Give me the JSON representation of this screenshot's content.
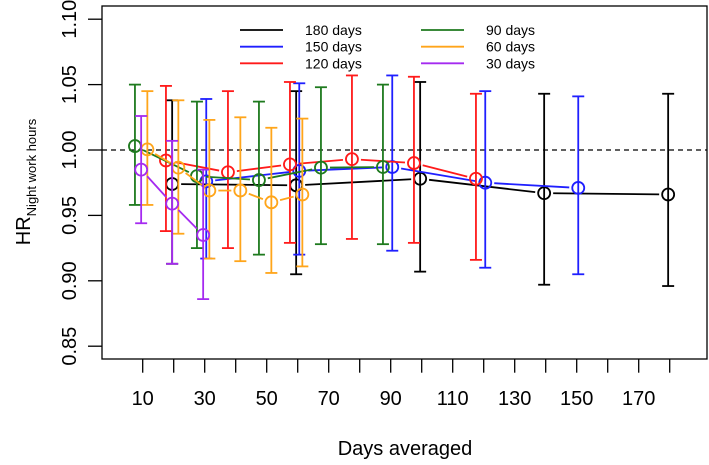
{
  "chart_data": {
    "type": "line",
    "title": "",
    "xlabel": "Days averaged",
    "ylabel_main": "HR",
    "ylabel_sub": "Night work hours",
    "xlim": [
      -2.5,
      190.4
    ],
    "ylim": [
      0.84,
      1.11
    ],
    "x_ticks": [
      10,
      20,
      30,
      40,
      50,
      60,
      70,
      80,
      90,
      100,
      110,
      120,
      130,
      140,
      150,
      160,
      170,
      180
    ],
    "x_tick_labels": [
      "10",
      "30",
      "50",
      "70",
      "90",
      "110",
      "130",
      "150",
      "170"
    ],
    "x_tick_label_values": [
      10,
      30,
      50,
      70,
      90,
      110,
      130,
      150,
      170
    ],
    "y_ticks": [
      0.85,
      0.9,
      0.95,
      1.0,
      1.05,
      1.1
    ],
    "y_tick_labels": [
      "0.85",
      "0.90",
      "0.95",
      "1.00",
      "1.05",
      "1.10"
    ],
    "reference_line": 1.0,
    "legend_position": "top-center",
    "series": [
      {
        "name": "180 days",
        "color": "#000000",
        "x": [
          19.5,
          59.5,
          99.5,
          139.5,
          179.5
        ],
        "y": [
          0.974,
          0.973,
          0.978,
          0.967,
          0.966
        ],
        "lower": [
          0.913,
          0.905,
          0.907,
          0.897,
          0.896
        ],
        "upper": [
          1.038,
          1.045,
          1.052,
          1.043,
          1.043
        ]
      },
      {
        "name": "150 days",
        "color": "#1f1fff",
        "x": [
          30.5,
          60.5,
          90.5,
          120.5,
          150.5
        ],
        "y": [
          0.976,
          0.984,
          0.987,
          0.975,
          0.971
        ],
        "lower": [
          0.917,
          0.92,
          0.923,
          0.91,
          0.905
        ],
        "upper": [
          1.039,
          1.051,
          1.057,
          1.045,
          1.041
        ]
      },
      {
        "name": "120 days",
        "color": "#ff1a1a",
        "x": [
          17.5,
          37.5,
          57.5,
          77.5,
          97.5,
          117.5
        ],
        "y": [
          0.992,
          0.983,
          0.989,
          0.993,
          0.99,
          0.978
        ],
        "lower": [
          0.938,
          0.925,
          0.929,
          0.932,
          0.929,
          0.916
        ],
        "upper": [
          1.049,
          1.045,
          1.052,
          1.057,
          1.056,
          1.043
        ]
      },
      {
        "name": "90 days",
        "color": "#1e7a1e",
        "x": [
          7.5,
          27.5,
          47.5,
          67.5,
          87.5
        ],
        "y": [
          1.003,
          0.98,
          0.977,
          0.9865,
          0.987
        ],
        "lower": [
          0.958,
          0.925,
          0.92,
          0.928,
          0.928
        ],
        "upper": [
          1.05,
          1.037,
          1.037,
          1.048,
          1.05
        ]
      },
      {
        "name": "60 days",
        "color": "#ffa51a",
        "x": [
          11.5,
          21.5,
          31.5,
          41.5,
          51.5,
          61.5
        ],
        "y": [
          1.0005,
          0.9865,
          0.969,
          0.969,
          0.96,
          0.966
        ],
        "lower": [
          0.958,
          0.936,
          0.917,
          0.915,
          0.906,
          0.911
        ],
        "upper": [
          1.045,
          1.038,
          1.023,
          1.025,
          1.017,
          1.024
        ]
      },
      {
        "name": "30 days",
        "color": "#a52af0",
        "x": [
          9.5,
          19.5,
          29.5
        ],
        "y": [
          0.985,
          0.959,
          0.935
        ],
        "lower": [
          0.944,
          0.913,
          0.886
        ],
        "upper": [
          1.026,
          1.007,
          0.985
        ]
      }
    ]
  }
}
